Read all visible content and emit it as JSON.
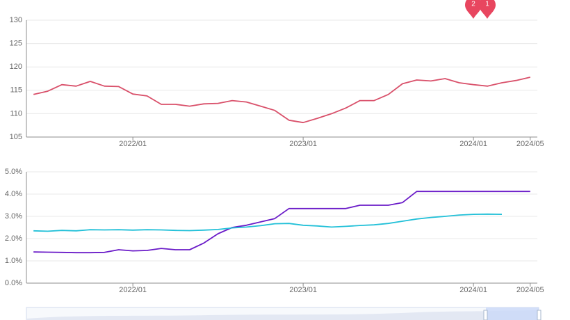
{
  "chart_data": [
    {
      "type": "line",
      "categories": [
        null,
        null,
        null,
        null,
        null,
        null,
        null,
        "2022/01",
        null,
        null,
        null,
        null,
        null,
        null,
        null,
        null,
        null,
        null,
        null,
        "2023/01",
        null,
        null,
        null,
        null,
        null,
        null,
        null,
        null,
        null,
        null,
        null,
        "2024/01",
        null,
        null,
        null,
        "2024/05"
      ],
      "series": [
        {
          "color": "#d9506a",
          "values": [
            114.1,
            114.8,
            116.2,
            115.9,
            116.9,
            115.9,
            115.8,
            114.2,
            113.8,
            112.0,
            112.0,
            111.6,
            112.1,
            112.2,
            112.8,
            112.5,
            111.6,
            110.7,
            108.6,
            108.1,
            109.0,
            110.0,
            111.2,
            112.8,
            112.8,
            114.1,
            116.4,
            117.2,
            117.0,
            117.5,
            116.6,
            116.2,
            115.9,
            116.6,
            117.1,
            117.8
          ]
        }
      ],
      "ylim": [
        105,
        130
      ],
      "yticks": [
        105,
        110,
        115,
        120,
        125,
        130
      ],
      "grid": true,
      "markers": [
        {
          "label": "2",
          "color": "#e8465f"
        },
        {
          "label": "1",
          "color": "#e8465f"
        }
      ]
    },
    {
      "type": "line",
      "categories": [
        null,
        null,
        null,
        null,
        null,
        null,
        null,
        "2022/01",
        null,
        null,
        null,
        null,
        null,
        null,
        null,
        null,
        null,
        null,
        null,
        "2023/01",
        null,
        null,
        null,
        null,
        null,
        null,
        null,
        null,
        null,
        null,
        null,
        "2024/01",
        null,
        null,
        null,
        "2024/05"
      ],
      "series": [
        {
          "color": "#6a1bc8",
          "values": [
            1.4,
            1.39,
            1.38,
            1.37,
            1.37,
            1.38,
            1.5,
            1.45,
            1.47,
            1.56,
            1.5,
            1.5,
            1.8,
            2.22,
            2.5,
            2.6,
            2.75,
            2.9,
            3.35,
            3.35,
            3.35,
            3.35,
            3.35,
            3.5,
            3.5,
            3.5,
            3.62,
            4.12,
            4.12,
            4.12,
            4.12,
            4.12,
            4.12,
            4.12,
            4.12,
            4.12
          ]
        },
        {
          "color": "#22c0d8",
          "values": [
            2.35,
            2.33,
            2.37,
            2.35,
            2.4,
            2.39,
            2.4,
            2.38,
            2.4,
            2.39,
            2.37,
            2.36,
            2.38,
            2.41,
            2.48,
            2.52,
            2.58,
            2.67,
            2.68,
            2.6,
            2.57,
            2.52,
            2.55,
            2.59,
            2.62,
            2.68,
            2.78,
            2.88,
            2.95,
            3.0,
            3.06,
            3.09,
            3.1,
            3.09,
            null,
            null
          ]
        }
      ],
      "ylim": [
        0,
        5
      ],
      "yticks": [
        {
          "value": 0,
          "label": "0.0%"
        },
        {
          "value": 1,
          "label": "1.0%"
        },
        {
          "value": 2,
          "label": "2.0%"
        },
        {
          "value": 3,
          "label": "3.0%"
        },
        {
          "value": 4,
          "label": "4.0%"
        },
        {
          "value": 5,
          "label": "5.0%"
        }
      ],
      "grid": true
    }
  ]
}
